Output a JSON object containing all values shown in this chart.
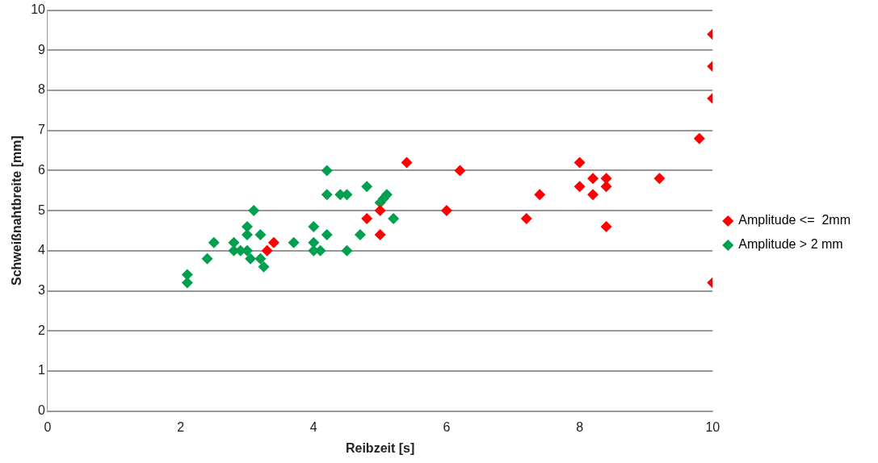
{
  "chart_data": {
    "type": "scatter",
    "xlabel": "Reibzeit [s]",
    "ylabel": "Schweißnahtbreite [mm]",
    "xlim": [
      0,
      10
    ],
    "xticks": [
      0,
      2,
      4,
      6,
      8,
      10
    ],
    "ylim": [
      0,
      10
    ],
    "yticks": [
      0,
      1,
      2,
      3,
      4,
      5,
      6,
      7,
      8,
      9,
      10
    ],
    "grid": "y",
    "legend": "right",
    "marker": "diamond",
    "series": [
      {
        "name": "Amplitude <=  2mm",
        "color": "#ff0000",
        "x": [
          3.3,
          3.4,
          4.8,
          5.0,
          5.0,
          5.4,
          6.0,
          6.2,
          7.2,
          7.4,
          8.0,
          8.0,
          8.2,
          8.2,
          8.4,
          8.4,
          8.4,
          9.2,
          9.8,
          10,
          10,
          10,
          10
        ],
        "values": [
          4.0,
          4.2,
          4.8,
          5.0,
          4.4,
          6.2,
          5.0,
          6.0,
          4.8,
          5.4,
          6.2,
          5.6,
          5.8,
          5.4,
          5.8,
          5.6,
          4.6,
          5.8,
          6.8,
          9.4,
          8.6,
          7.8,
          3.2
        ]
      },
      {
        "name": "Amplitude > 2 mm",
        "color": "#00a050",
        "x": [
          2.1,
          2.1,
          2.4,
          2.5,
          2.8,
          2.8,
          2.9,
          3.0,
          3.0,
          3.0,
          3.05,
          3.1,
          3.2,
          3.2,
          3.25,
          3.7,
          4.0,
          4.0,
          4.0,
          4.1,
          4.2,
          4.2,
          4.2,
          4.4,
          4.5,
          4.5,
          4.7,
          4.8,
          5.0,
          5.05,
          5.1,
          5.2
        ],
        "values": [
          3.4,
          3.2,
          3.8,
          4.2,
          4.0,
          4.2,
          4.0,
          4.6,
          4.4,
          4.0,
          3.8,
          5.0,
          4.4,
          3.8,
          3.6,
          4.2,
          4.6,
          4.2,
          4.0,
          4.0,
          6.0,
          5.4,
          4.4,
          5.4,
          5.4,
          4.0,
          4.4,
          5.6,
          5.2,
          5.3,
          5.4,
          4.8
        ]
      }
    ]
  }
}
